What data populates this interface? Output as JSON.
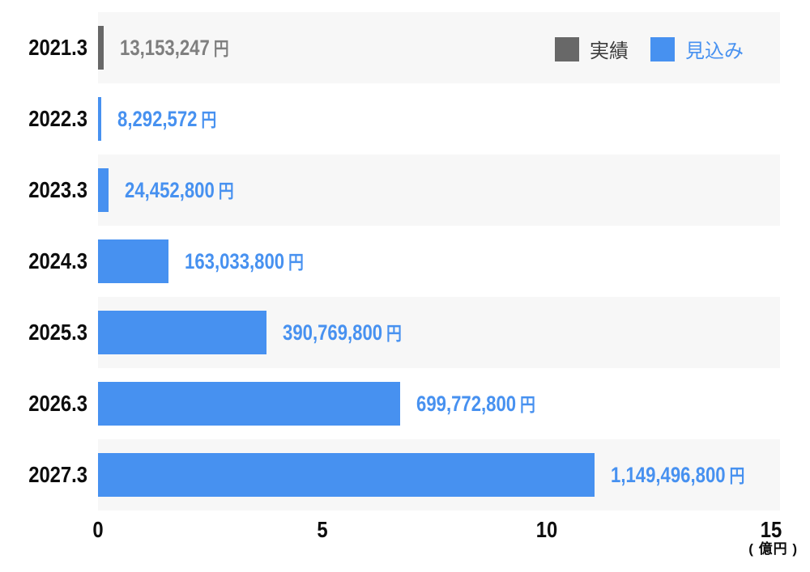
{
  "legend": {
    "actual_label": "実績",
    "forecast_label": "見込み"
  },
  "colors": {
    "actual": "#686868",
    "forecast": "#4791f0",
    "band": "#f7f7f7",
    "actual_value_text": "#7f7f7f",
    "legend_actual_text": "#3c3c3c",
    "year_text": "#0d0d0d"
  },
  "chart_data": {
    "type": "bar",
    "orientation": "horizontal",
    "title": "",
    "xlabel": "( 億円 )",
    "unit_note": "( 億円 )",
    "value_suffix": "円",
    "x_ticks": [
      0,
      5,
      10,
      15
    ],
    "xlim": [
      0,
      15
    ],
    "tick_axis_max_oku": 15.2,
    "bar_axis_max_oku": 15.8,
    "grid": false,
    "legend_position": "top-right",
    "rows": [
      {
        "year": "2021.3",
        "value_yen": 13153247,
        "value_label": "13,153,247",
        "series": "実績"
      },
      {
        "year": "2022.3",
        "value_yen": 8292572,
        "value_label": "8,292,572",
        "series": "見込み"
      },
      {
        "year": "2023.3",
        "value_yen": 24452800,
        "value_label": "24,452,800",
        "series": "見込み"
      },
      {
        "year": "2024.3",
        "value_yen": 163033800,
        "value_label": "163,033,800",
        "series": "見込み"
      },
      {
        "year": "2025.3",
        "value_yen": 390769800,
        "value_label": "390,769,800",
        "series": "見込み"
      },
      {
        "year": "2026.3",
        "value_yen": 699772800,
        "value_label": "699,772,800",
        "series": "見込み"
      },
      {
        "year": "2027.3",
        "value_yen": 1149496800,
        "value_label": "1,149,496,800",
        "series": "見込み"
      }
    ]
  }
}
